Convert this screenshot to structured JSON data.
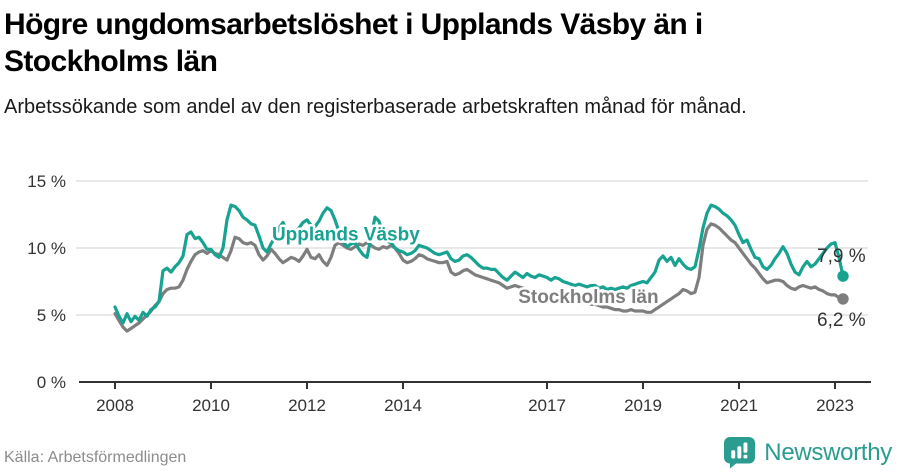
{
  "header": {
    "title": "Högre ungdomsarbetslöshet i Upplands Väsby än i Stockholms län",
    "subtitle": "Arbetssökande som andel av den registerbaserade arbetskraften månad för månad."
  },
  "footer": {
    "source": "Källa: Arbetsförmedlingen",
    "brand_name": "Newsworthy",
    "brand_color": "#2a9c90"
  },
  "chart_data": {
    "type": "line",
    "x_axis": {
      "start_year": 2008,
      "step_months": 1,
      "ticks": [
        2008,
        2010,
        2012,
        2014,
        2017,
        2019,
        2021,
        2023
      ]
    },
    "y_axis": {
      "ticks": [
        {
          "value": 0,
          "label": "0 %"
        },
        {
          "value": 5,
          "label": "5 %"
        },
        {
          "value": 10,
          "label": "10 %"
        },
        {
          "value": 15,
          "label": "15 %"
        }
      ],
      "ylim": [
        0,
        16.5
      ]
    },
    "grid": true,
    "legend_position": "inline-labels",
    "series": [
      {
        "name": "Stockholms län",
        "color": "#7e7e7e",
        "end_label": "6,2 %",
        "end_label_position": "below",
        "values": [
          5.1,
          4.6,
          4.1,
          3.8,
          4.0,
          4.2,
          4.4,
          4.7,
          5.0,
          5.3,
          5.7,
          6.0,
          6.6,
          6.9,
          7.0,
          7.0,
          7.1,
          7.6,
          8.4,
          9.0,
          9.5,
          9.7,
          9.8,
          9.6,
          9.8,
          9.6,
          9.5,
          9.3,
          9.1,
          9.8,
          10.8,
          10.7,
          10.4,
          10.3,
          10.4,
          10.2,
          9.5,
          9.1,
          9.4,
          9.9,
          9.6,
          9.2,
          8.9,
          9.1,
          9.3,
          9.2,
          9.0,
          9.4,
          9.9,
          9.3,
          9.2,
          9.5,
          9.0,
          8.7,
          9.3,
          10.2,
          10.4,
          10.2,
          10.0,
          9.9,
          10.1,
          10.3,
          10.2,
          10.4,
          10.2,
          10.0,
          9.9,
          10.1,
          10.0,
          10.2,
          10.0,
          9.6,
          9.1,
          8.9,
          9.0,
          9.2,
          9.5,
          9.4,
          9.2,
          9.1,
          9.0,
          8.9,
          8.9,
          9.0,
          8.2,
          8.0,
          8.1,
          8.3,
          8.4,
          8.2,
          8.0,
          7.9,
          7.8,
          7.7,
          7.6,
          7.5,
          7.4,
          7.2,
          7.0,
          7.1,
          7.2,
          7.1,
          7.0,
          6.9,
          6.8,
          6.7,
          6.6,
          6.6,
          6.6,
          6.5,
          6.4,
          6.4,
          6.3,
          6.2,
          6.1,
          6.0,
          6.0,
          5.9,
          5.9,
          5.8,
          5.8,
          5.7,
          5.6,
          5.6,
          5.5,
          5.4,
          5.4,
          5.3,
          5.3,
          5.4,
          5.3,
          5.3,
          5.3,
          5.2,
          5.2,
          5.4,
          5.6,
          5.8,
          6.0,
          6.2,
          6.4,
          6.6,
          6.9,
          6.8,
          6.6,
          6.7,
          7.8,
          10.2,
          11.4,
          11.8,
          11.7,
          11.5,
          11.2,
          10.9,
          10.6,
          10.4,
          10.0,
          9.6,
          9.2,
          8.8,
          8.5,
          8.1,
          7.7,
          7.4,
          7.5,
          7.6,
          7.6,
          7.5,
          7.2,
          7.0,
          6.9,
          7.1,
          7.2,
          7.1,
          7.0,
          7.1,
          6.9,
          6.8,
          6.6,
          6.5,
          6.5,
          6.3,
          6.2
        ]
      },
      {
        "name": "Upplands Väsby",
        "color": "#17a291",
        "end_label": "7,9 %",
        "end_label_position": "above",
        "values": [
          5.6,
          4.9,
          4.4,
          5.1,
          4.5,
          4.9,
          4.6,
          5.2,
          4.9,
          5.4,
          5.6,
          6.0,
          8.3,
          8.5,
          8.2,
          8.6,
          8.9,
          9.4,
          11.0,
          11.2,
          10.7,
          10.8,
          10.4,
          9.9,
          9.9,
          9.5,
          9.3,
          10.0,
          12.1,
          13.2,
          13.1,
          12.8,
          12.3,
          12.1,
          11.8,
          11.7,
          10.9,
          10.0,
          9.7,
          10.3,
          10.8,
          11.5,
          11.9,
          11.3,
          11.0,
          11.2,
          11.5,
          11.9,
          12.1,
          11.7,
          11.6,
          12.0,
          12.6,
          13.0,
          12.8,
          12.1,
          11.2,
          10.5,
          10.1,
          10.3,
          10.4,
          9.9,
          9.5,
          9.3,
          10.8,
          12.3,
          12.0,
          11.0,
          10.5,
          10.4,
          10.0,
          9.8,
          9.7,
          9.5,
          9.6,
          9.8,
          10.2,
          10.1,
          10.0,
          9.8,
          9.6,
          9.5,
          9.6,
          9.7,
          9.2,
          9.0,
          9.1,
          9.4,
          9.5,
          9.3,
          9.0,
          8.7,
          8.5,
          8.5,
          8.4,
          8.4,
          8.1,
          7.8,
          7.6,
          7.9,
          8.2,
          8.0,
          7.8,
          8.1,
          7.9,
          7.8,
          8.0,
          7.9,
          7.8,
          7.6,
          7.8,
          7.7,
          7.5,
          7.4,
          7.3,
          7.2,
          7.3,
          7.2,
          7.1,
          7.2,
          7.2,
          7.0,
          7.1,
          6.9,
          7.0,
          6.9,
          7.0,
          7.1,
          7.0,
          7.2,
          7.3,
          7.4,
          7.5,
          7.4,
          7.8,
          8.2,
          9.1,
          9.4,
          9.0,
          9.3,
          8.7,
          9.2,
          8.8,
          8.5,
          8.4,
          8.6,
          9.9,
          11.5,
          12.6,
          13.2,
          13.1,
          12.9,
          12.6,
          12.4,
          12.1,
          11.7,
          11.0,
          10.4,
          10.6,
          9.9,
          9.3,
          9.2,
          8.6,
          8.4,
          8.7,
          9.2,
          9.6,
          10.1,
          9.6,
          8.8,
          8.2,
          8.0,
          8.6,
          9.0,
          8.6,
          8.8,
          9.2,
          9.6,
          10.0,
          10.3,
          10.4,
          9.3,
          7.9
        ]
      }
    ],
    "annotations": [
      {
        "text": "Upplands Väsby",
        "color": "#17a291",
        "x_year": 2011.27,
        "y_pct": 10.55
      },
      {
        "text": "Stockholms län",
        "color": "#7e7e7e",
        "x_year": 2016.4,
        "y_pct": 5.9
      }
    ]
  }
}
